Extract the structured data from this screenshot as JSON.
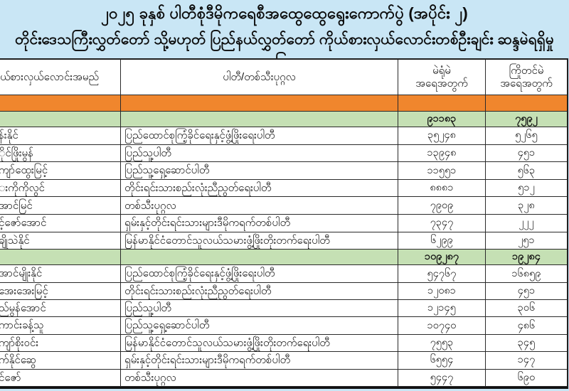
{
  "title": {
    "line1": "၂၀၂၅ ခုနှစ် ပါတီစုံဒီမိုကရေစီအထွေထွေရွေးကောက်ပွဲ (အပိုင်း ၂)",
    "line2": "တိုင်းဒေသကြီးလွှတ်တော် သို့မဟုတ် ပြည်နယ်လွှတ်တော် ကိုယ်စားလှယ်လောင်းတစ်ဦးချင်း ဆန္ဒမဲရရှိမှု အခြေအနေ"
  },
  "table": {
    "headers": {
      "candidate": "ယ်စားလှယ်လောင်းအမည်",
      "party": "ပါတီ/တစ်သီးပုဂ္ဂလ",
      "station_votes_line1": "မဲရုံမဲ",
      "station_votes_line2": "အရေအတွက်",
      "advance_votes_line1": "ကြိုတင်မဲ",
      "advance_votes_line2": "အရေအတွက်"
    },
    "sections": [
      {
        "subtotal": {
          "station": "၉၁၁၈၃",
          "advance": "၇၅၉၂"
        },
        "rows": [
          {
            "name": "န်းနိုင်",
            "party": "ပြည်ထောင်စုကြံ့ခိုင်ရေးနှင့်ဖွံ့ဖြိုးရေးပါတီ",
            "station": "၃၅၂၄၈",
            "advance": "၅၂၆၅"
          },
          {
            "name": "ိုင်ဖြိုးမွန်",
            "party": "ပြည်သူ့ပါတီ",
            "station": "၁၃၉၄၈",
            "advance": "၄၅၁"
          },
          {
            "name": "ကျာ်ထွေးမြင့်",
            "party": "ပြည်သူ့ရှေ့ဆောင်ပါတီ",
            "station": "၁၁၅၅၁",
            "advance": "၅၆၃"
          },
          {
            "name": "းကိုကိုလွင်",
            "party": "တိုင်းရင်းသားစည်းလုံးညီညွတ်ရေးပါတီ",
            "station": "၈၈၈၁",
            "advance": "၅၁၂"
          },
          {
            "name": "အာင်မြင်",
            "party": "တစ်သီးပုဂ္ဂလ",
            "station": "၇၉၀၉",
            "advance": "၃၂၈"
          },
          {
            "name": "င့်ဇော်အောင်",
            "party": "ရှမ်းနှင့်တိုင်းရင်းသားများဒီမိုကရက်တစ်ပါတီ",
            "station": "၇၃၄၇",
            "advance": "၂၂၂"
          },
          {
            "name": "ချိုသဲနိုင်",
            "party": "မြန်မာနိုင်ငံတောင်သူလယ်သမားဖွံ့ဖြိုးတိုးတက်ရေးပါတီ",
            "station": "၆၂၉၉",
            "advance": "၂၅၁"
          }
        ]
      },
      {
        "subtotal": {
          "station": "၁၀၉၂၈၇",
          "advance": "၁၉၂၈၄"
        },
        "rows": [
          {
            "name": "အာင်မျိုးနိုင်",
            "party": "ပြည်ထောင်စုကြံ့ခိုင်ရေးနှင့်ဖွံ့ဖြိုးရေးပါတီ",
            "station": "၅၄၇၆၇",
            "advance": "၁၆၈၅၉"
          },
          {
            "name": "အေးအေးမြင့်",
            "party": "တိုင်းရင်းသားစည်းလုံးညီညွတ်ရေးပါတီ",
            "station": "၁၂၀၈၁",
            "advance": "၄၅၁"
          },
          {
            "name": "ည်မွန်အောင်",
            "party": "ပြည်သူ့ပါတီ",
            "station": "၁၂၁၄၅",
            "advance": "၃၀၆"
          },
          {
            "name": "ကာင်းခန့်သူ",
            "party": "ပြည်သူ့ရှေ့ဆောင်ပါတီ",
            "station": "၁၀၇၄၀",
            "advance": "၄၈၆"
          },
          {
            "name": "ကျာ်စိုးဝင်း",
            "party": "မြန်မာနိုင်ငံတောင်သူလယ်သမားဖွံ့ဖြိုးတိုးတက်ရေးပါတီ",
            "station": "၇၅၅၃",
            "advance": "၃၄၅"
          },
          {
            "name": "က်နိုင်ဆွေ",
            "party": "ရှမ်းနှင့်တိုင်းရင်းသားများဒီမိုကရက်တစ်ပါတီ",
            "station": "၆၅၅၄",
            "advance": "၁၄၇"
          },
          {
            "name": "င်ဇော်",
            "party": "တစ်သီးပုဂ္ဂလ",
            "station": "၅၄၄၇",
            "advance": "၆၉၀"
          }
        ]
      }
    ]
  },
  "colors": {
    "page_background": "#c9e6f5",
    "divider_row": "#f0862d",
    "subtotal_row": "#c5e0b4",
    "border": "#2a2a2a",
    "text": "#111111"
  }
}
